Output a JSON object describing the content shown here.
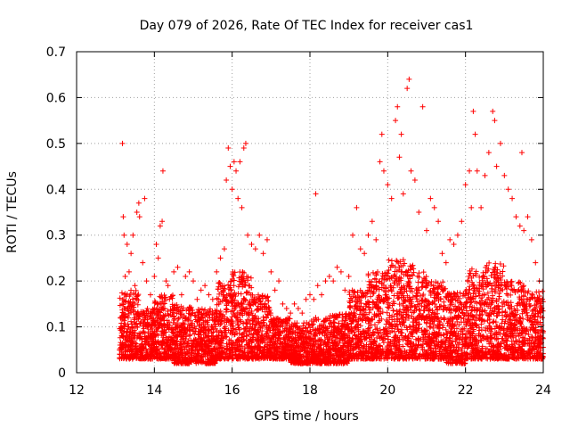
{
  "chart_data": {
    "type": "scatter",
    "title": "Day 079 of 2026, Rate Of TEC Index for receiver cas1",
    "xlabel": "GPS time / hours",
    "ylabel": "ROTI / TECUs",
    "xlim": [
      12,
      24
    ],
    "ylim": [
      0,
      0.7
    ],
    "x_ticks": [
      12,
      14,
      16,
      18,
      20,
      22,
      24
    ],
    "y_ticks": [
      0,
      0.1,
      0.2,
      0.3,
      0.4,
      0.5,
      0.6,
      0.7
    ],
    "grid": true,
    "marker": "+",
    "color": "#ff0000",
    "series": [
      {
        "name": "ROTI",
        "points": [
          [
            13.18,
            0.5
          ],
          [
            13.2,
            0.34
          ],
          [
            13.22,
            0.3
          ],
          [
            13.25,
            0.21
          ],
          [
            13.3,
            0.28
          ],
          [
            13.35,
            0.22
          ],
          [
            13.4,
            0.26
          ],
          [
            13.45,
            0.3
          ],
          [
            13.5,
            0.19
          ],
          [
            13.55,
            0.35
          ],
          [
            13.6,
            0.37
          ],
          [
            13.62,
            0.34
          ],
          [
            13.7,
            0.24
          ],
          [
            13.75,
            0.38
          ],
          [
            13.8,
            0.2
          ],
          [
            13.9,
            0.17
          ],
          [
            14.0,
            0.21
          ],
          [
            14.05,
            0.28
          ],
          [
            14.1,
            0.25
          ],
          [
            14.15,
            0.32
          ],
          [
            14.2,
            0.33
          ],
          [
            14.22,
            0.44
          ],
          [
            14.3,
            0.2
          ],
          [
            14.35,
            0.19
          ],
          [
            14.5,
            0.22
          ],
          [
            14.6,
            0.23
          ],
          [
            14.7,
            0.17
          ],
          [
            14.8,
            0.21
          ],
          [
            14.9,
            0.22
          ],
          [
            15.0,
            0.2
          ],
          [
            15.1,
            0.16
          ],
          [
            15.2,
            0.18
          ],
          [
            15.3,
            0.19
          ],
          [
            15.4,
            0.17
          ],
          [
            15.5,
            0.16
          ],
          [
            15.6,
            0.22
          ],
          [
            15.7,
            0.25
          ],
          [
            15.8,
            0.27
          ],
          [
            15.85,
            0.42
          ],
          [
            15.9,
            0.49
          ],
          [
            15.95,
            0.45
          ],
          [
            16.0,
            0.4
          ],
          [
            16.05,
            0.46
          ],
          [
            16.1,
            0.44
          ],
          [
            16.15,
            0.38
          ],
          [
            16.2,
            0.46
          ],
          [
            16.25,
            0.36
          ],
          [
            16.3,
            0.49
          ],
          [
            16.35,
            0.5
          ],
          [
            16.4,
            0.3
          ],
          [
            16.5,
            0.28
          ],
          [
            16.6,
            0.27
          ],
          [
            16.7,
            0.3
          ],
          [
            16.8,
            0.26
          ],
          [
            16.9,
            0.29
          ],
          [
            17.0,
            0.22
          ],
          [
            17.1,
            0.18
          ],
          [
            17.2,
            0.2
          ],
          [
            17.3,
            0.15
          ],
          [
            17.4,
            0.14
          ],
          [
            17.5,
            0.13
          ],
          [
            17.6,
            0.15
          ],
          [
            17.7,
            0.14
          ],
          [
            17.8,
            0.13
          ],
          [
            17.9,
            0.16
          ],
          [
            18.0,
            0.17
          ],
          [
            18.1,
            0.16
          ],
          [
            18.15,
            0.39
          ],
          [
            18.2,
            0.19
          ],
          [
            18.3,
            0.17
          ],
          [
            18.4,
            0.2
          ],
          [
            18.5,
            0.21
          ],
          [
            18.6,
            0.2
          ],
          [
            18.7,
            0.23
          ],
          [
            18.8,
            0.22
          ],
          [
            18.9,
            0.18
          ],
          [
            19.0,
            0.21
          ],
          [
            19.1,
            0.3
          ],
          [
            19.2,
            0.36
          ],
          [
            19.3,
            0.27
          ],
          [
            19.4,
            0.26
          ],
          [
            19.5,
            0.3
          ],
          [
            19.6,
            0.33
          ],
          [
            19.7,
            0.29
          ],
          [
            19.8,
            0.46
          ],
          [
            19.85,
            0.52
          ],
          [
            19.9,
            0.44
          ],
          [
            20.0,
            0.41
          ],
          [
            20.1,
            0.38
          ],
          [
            20.2,
            0.55
          ],
          [
            20.25,
            0.58
          ],
          [
            20.3,
            0.47
          ],
          [
            20.35,
            0.52
          ],
          [
            20.4,
            0.39
          ],
          [
            20.5,
            0.62
          ],
          [
            20.55,
            0.64
          ],
          [
            20.6,
            0.44
          ],
          [
            20.7,
            0.42
          ],
          [
            20.8,
            0.35
          ],
          [
            20.9,
            0.58
          ],
          [
            21.0,
            0.31
          ],
          [
            21.1,
            0.38
          ],
          [
            21.2,
            0.36
          ],
          [
            21.3,
            0.33
          ],
          [
            21.4,
            0.26
          ],
          [
            21.5,
            0.24
          ],
          [
            21.6,
            0.29
          ],
          [
            21.7,
            0.28
          ],
          [
            21.8,
            0.3
          ],
          [
            21.9,
            0.33
          ],
          [
            22.0,
            0.41
          ],
          [
            22.1,
            0.44
          ],
          [
            22.15,
            0.36
          ],
          [
            22.2,
            0.57
          ],
          [
            22.25,
            0.52
          ],
          [
            22.3,
            0.44
          ],
          [
            22.4,
            0.36
          ],
          [
            22.5,
            0.43
          ],
          [
            22.6,
            0.48
          ],
          [
            22.7,
            0.57
          ],
          [
            22.75,
            0.55
          ],
          [
            22.8,
            0.45
          ],
          [
            22.9,
            0.5
          ],
          [
            23.0,
            0.43
          ],
          [
            23.1,
            0.4
          ],
          [
            23.2,
            0.38
          ],
          [
            23.3,
            0.34
          ],
          [
            23.4,
            0.32
          ],
          [
            23.45,
            0.48
          ],
          [
            23.5,
            0.31
          ],
          [
            23.6,
            0.34
          ],
          [
            23.7,
            0.29
          ],
          [
            23.8,
            0.24
          ],
          [
            23.9,
            0.2
          ],
          [
            23.95,
            0.03
          ]
        ],
        "noise_bands": [
          [
            13.1,
            13.6,
            0.03,
            0.18
          ],
          [
            13.6,
            14.0,
            0.03,
            0.14
          ],
          [
            14.0,
            14.5,
            0.03,
            0.17
          ],
          [
            14.5,
            15.0,
            0.02,
            0.15
          ],
          [
            15.0,
            15.6,
            0.02,
            0.14
          ],
          [
            15.6,
            16.0,
            0.03,
            0.2
          ],
          [
            16.0,
            16.5,
            0.03,
            0.22
          ],
          [
            16.5,
            17.0,
            0.03,
            0.17
          ],
          [
            17.0,
            17.5,
            0.03,
            0.12
          ],
          [
            17.5,
            18.0,
            0.02,
            0.11
          ],
          [
            18.0,
            18.5,
            0.02,
            0.12
          ],
          [
            18.5,
            19.0,
            0.02,
            0.13
          ],
          [
            19.0,
            19.5,
            0.03,
            0.18
          ],
          [
            19.5,
            20.0,
            0.03,
            0.22
          ],
          [
            20.0,
            20.5,
            0.03,
            0.25
          ],
          [
            20.5,
            21.0,
            0.03,
            0.24
          ],
          [
            21.0,
            21.5,
            0.03,
            0.2
          ],
          [
            21.5,
            22.0,
            0.02,
            0.18
          ],
          [
            22.0,
            22.5,
            0.03,
            0.23
          ],
          [
            22.5,
            23.0,
            0.03,
            0.24
          ],
          [
            23.0,
            23.5,
            0.03,
            0.2
          ],
          [
            23.5,
            24.0,
            0.03,
            0.18
          ]
        ]
      }
    ]
  }
}
